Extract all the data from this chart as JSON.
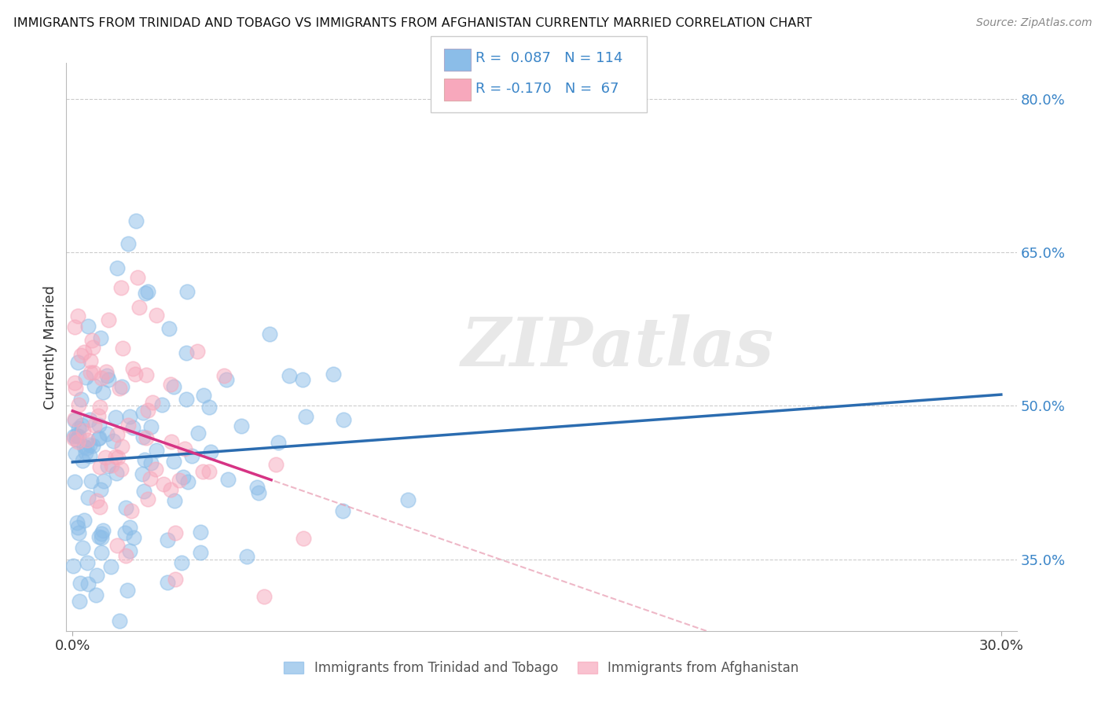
{
  "title": "IMMIGRANTS FROM TRINIDAD AND TOBAGO VS IMMIGRANTS FROM AFGHANISTAN CURRENTLY MARRIED CORRELATION CHART",
  "source": "Source: ZipAtlas.com",
  "ylabel": "Currently Married",
  "ylim": [
    0.28,
    0.835
  ],
  "xlim": [
    -0.002,
    0.305
  ],
  "yticks_show": [
    0.35,
    0.5,
    0.65,
    0.8
  ],
  "ytick_labels_show": [
    "35.0%",
    "50.0%",
    "65.0%",
    "80.0%"
  ],
  "R_blue": 0.087,
  "N_blue": 114,
  "R_pink": -0.17,
  "N_pink": 67,
  "color_blue": "#8bbde8",
  "color_pink": "#f7a8bc",
  "color_blue_line": "#2b6cb0",
  "color_pink_line": "#d63384",
  "color_pink_dashed": "#e89ab0",
  "label1": "Immigrants from Trinidad and Tobago",
  "label2": "Immigrants from Afghanistan",
  "watermark": "ZIPatlas",
  "seed": 42,
  "n_blue": 114,
  "n_pink": 67,
  "blue_intercept": 0.445,
  "blue_slope": 0.22,
  "pink_intercept": 0.495,
  "pink_slope": -1.05
}
